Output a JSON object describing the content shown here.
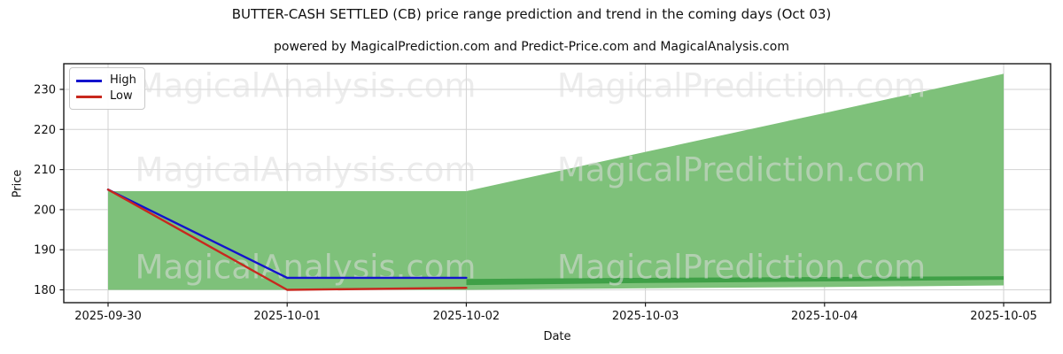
{
  "chart_data": {
    "type": "line",
    "title": "BUTTER-CASH SETTLED (CB) price range prediction and trend in the coming days (Oct 03)",
    "subtitle": "powered by MagicalPrediction.com and Predict-Price.com and MagicalAnalysis.com",
    "xlabel": "Date",
    "ylabel": "Price",
    "x_tick_labels": [
      "2025-09-30",
      "2025-10-01",
      "2025-10-02",
      "2025-10-03",
      "2025-10-04",
      "2025-10-05"
    ],
    "y_tick_labels": [
      180,
      190,
      200,
      210,
      220,
      230
    ],
    "ylim": [
      176.8,
      236.4
    ],
    "grid": true,
    "legend": {
      "position": "upper-left",
      "entries": [
        {
          "label": "High",
          "color": "#1313cd"
        },
        {
          "label": "Low",
          "color": "#c8281e"
        }
      ]
    },
    "series": [
      {
        "name": "High",
        "color": "#1313cd",
        "x": [
          0,
          1,
          2
        ],
        "values": [
          205,
          183,
          183
        ]
      },
      {
        "name": "Low",
        "color": "#c8281e",
        "x": [
          0,
          1,
          2
        ],
        "values": [
          205,
          180,
          180.5
        ]
      }
    ],
    "bands": [
      {
        "name": "historical-range",
        "color": "#7ec17a",
        "x": [
          0,
          1,
          2
        ],
        "top": [
          204.6,
          204.6,
          204.6
        ],
        "bottom": [
          180,
          180,
          180
        ]
      },
      {
        "name": "forecast-range",
        "color": "#7ec17a",
        "x": [
          2,
          3,
          4,
          5
        ],
        "top": [
          204.6,
          214.4,
          224.1,
          233.9
        ],
        "bottom": [
          180,
          180.4,
          180.7,
          181.1
        ]
      },
      {
        "name": "forecast-inner-range",
        "color": "#3fa047",
        "x": [
          2,
          3,
          4,
          5
        ],
        "top": [
          182.7,
          183.0,
          183.2,
          183.4
        ],
        "bottom": [
          181.2,
          181.7,
          182.1,
          182.5
        ]
      }
    ],
    "watermarks": {
      "left_text": "MagicalAnalysis.com",
      "right_text": "MagicalPrediction.com",
      "color": "#dcdcdc"
    }
  }
}
